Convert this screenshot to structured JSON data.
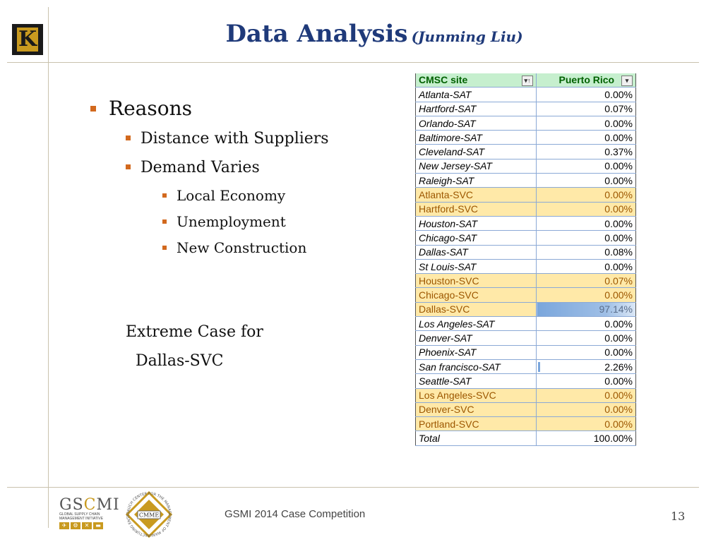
{
  "slide": {
    "title_main": "Data Analysis",
    "title_sub": "(Junming Liu)",
    "page_number": "13",
    "footer_text": "GSMI 2014 Case Competition"
  },
  "logos": {
    "k_logo_letter": "K",
    "gscmi_name_left": "GS",
    "gscmi_name_c": "C",
    "gscmi_name_right": "MI",
    "gscmi_tagline_1": "GLOBAL SUPPLY CHAIN",
    "gscmi_tagline_2": "MANAGEMENT INITIATIVE",
    "cmme_label": "CMME",
    "cmme_ring_text": "DAUCH CENTER FOR THE MANAGEMENT OF MANUFACTURING ENTERPRISES"
  },
  "bullets": {
    "level1": "Reasons",
    "level2": [
      "Distance with Suppliers",
      "Demand Varies"
    ],
    "level3": [
      "Local Economy",
      "Unemployment",
      "New Construction"
    ]
  },
  "note": {
    "line1": "Extreme Case for",
    "line2": "Dallas-SVC"
  },
  "table": {
    "header_site": "CMSC site",
    "header_value": "Puerto Rico",
    "header_site_filter_icon": "sort-filter-icon",
    "header_value_filter_icon": "dropdown-filter-icon",
    "rows": [
      {
        "site": "Atlanta-SAT",
        "value": "0.00%"
      },
      {
        "site": "Hartford-SAT",
        "value": "0.07%"
      },
      {
        "site": "Orlando-SAT",
        "value": "0.00%"
      },
      {
        "site": "Baltimore-SAT",
        "value": "0.00%"
      },
      {
        "site": "Cleveland-SAT",
        "value": "0.37%"
      },
      {
        "site": "New Jersey-SAT",
        "value": "0.00%"
      },
      {
        "site": "Raleigh-SAT",
        "value": "0.00%"
      },
      {
        "site": "Atlanta-SVC",
        "value": "0.00%"
      },
      {
        "site": "Hartford-SVC",
        "value": "0.00%"
      },
      {
        "site": "Houston-SAT",
        "value": "0.00%"
      },
      {
        "site": "Chicago-SAT",
        "value": "0.00%"
      },
      {
        "site": "Dallas-SAT",
        "value": "0.08%"
      },
      {
        "site": "St Louis-SAT",
        "value": "0.00%"
      },
      {
        "site": "Houston-SVC",
        "value": "0.07%"
      },
      {
        "site": "Chicago-SVC",
        "value": "0.00%"
      },
      {
        "site": "Dallas-SVC",
        "value": "97.14%"
      },
      {
        "site": "Los Angeles-SAT",
        "value": "0.00%"
      },
      {
        "site": "Denver-SAT",
        "value": "0.00%"
      },
      {
        "site": "Phoenix-SAT",
        "value": "0.00%"
      },
      {
        "site": "San francisco-SAT",
        "value": "2.26%"
      },
      {
        "site": "Seattle-SAT",
        "value": "0.00%"
      },
      {
        "site": "Los Angeles-SVC",
        "value": "0.00%"
      },
      {
        "site": "Denver-SVC",
        "value": "0.00%"
      },
      {
        "site": "Portland-SVC",
        "value": "0.00%"
      },
      {
        "site": "Total",
        "value": "100.00%"
      }
    ]
  },
  "colors": {
    "title_blue": "#1f3a7a",
    "bullet_orange": "#d2691e",
    "header_green_bg": "#c6efce",
    "header_green_text": "#006100",
    "highlight_bg": "#ffe9a8",
    "highlight_text": "#9c5700",
    "bar_blue": "#7aa6dc",
    "logo_gold": "#c99a1f"
  }
}
